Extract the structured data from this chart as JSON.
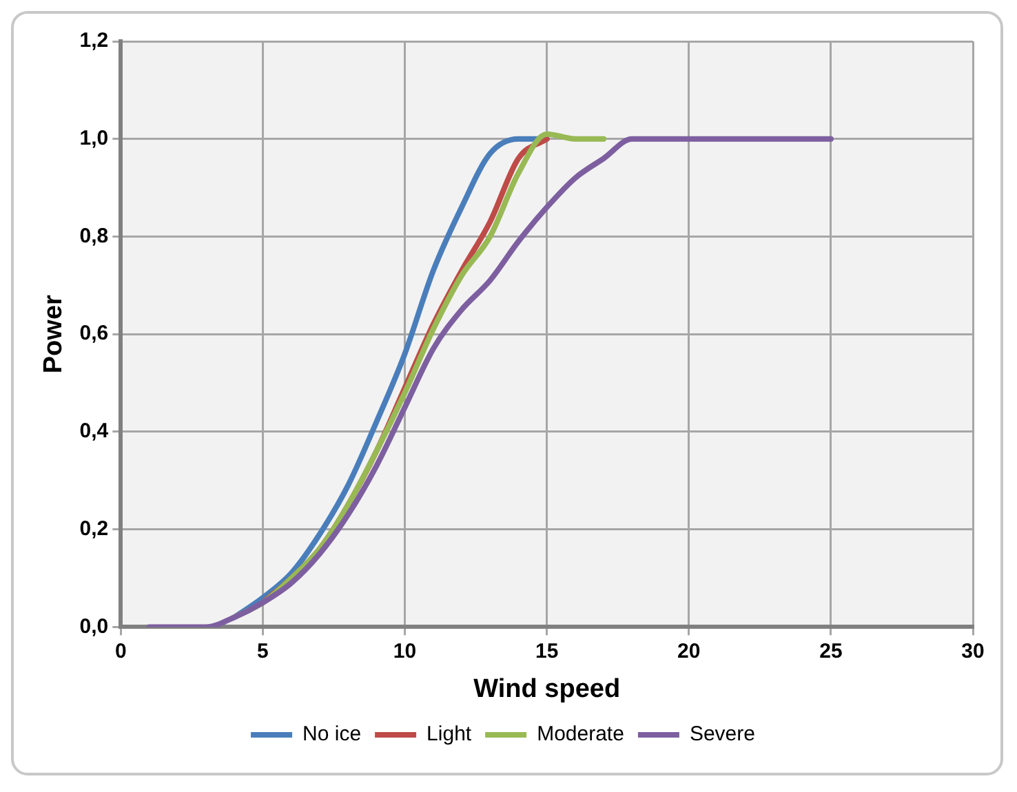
{
  "chart_data": {
    "type": "line",
    "xlabel": "Wind speed",
    "ylabel": "Power",
    "x": [
      1,
      2,
      3,
      4,
      5,
      6,
      7,
      8,
      9,
      10,
      11,
      12,
      13,
      14,
      15,
      16,
      17,
      18,
      19,
      20,
      21,
      22,
      23,
      24,
      25
    ],
    "series": [
      {
        "name": "No ice",
        "color": "#4a7ebb",
        "values": [
          null,
          null,
          null,
          0.02,
          0.06,
          0.11,
          0.19,
          0.29,
          0.42,
          0.56,
          0.73,
          0.86,
          0.97,
          1,
          1,
          null,
          null,
          null,
          null,
          null,
          null,
          null,
          null,
          null,
          null
        ]
      },
      {
        "name": "Light",
        "color": "#be4b48",
        "values": [
          null,
          null,
          null,
          null,
          0.05,
          0.1,
          0.16,
          0.25,
          0.36,
          0.49,
          0.62,
          0.73,
          0.83,
          0.96,
          1,
          null,
          null,
          null,
          null,
          null,
          null,
          null,
          null,
          null,
          null
        ]
      },
      {
        "name": "Moderate",
        "color": "#98b954",
        "values": [
          null,
          null,
          null,
          0.02,
          0.05,
          0.1,
          0.16,
          0.25,
          0.36,
          0.48,
          0.61,
          0.72,
          0.8,
          0.93,
          1.01,
          1,
          1,
          null,
          null,
          null,
          null,
          null,
          null,
          null,
          null
        ]
      },
      {
        "name": "Severe",
        "color": "#7d5fa0",
        "values": [
          0,
          0,
          0,
          0.02,
          0.05,
          0.09,
          0.15,
          0.23,
          0.33,
          0.45,
          0.57,
          0.65,
          0.71,
          0.79,
          0.86,
          0.92,
          0.96,
          1,
          1,
          1,
          1,
          1,
          1,
          1,
          1
        ]
      }
    ],
    "xlim": [
      0,
      30
    ],
    "xticks": [
      0,
      5,
      10,
      15,
      20,
      25,
      30
    ],
    "ylim": [
      0,
      1.2
    ],
    "yticks": [
      {
        "value": 0,
        "label": "0,0"
      },
      {
        "value": 0.2,
        "label": "0,2"
      },
      {
        "value": 0.4,
        "label": "0,4"
      },
      {
        "value": 0.6,
        "label": "0,6"
      },
      {
        "value": 0.8,
        "label": "0,8"
      },
      {
        "value": 1,
        "label": "1,0"
      },
      {
        "value": 1.2,
        "label": "1,2"
      }
    ],
    "grid": true,
    "legend": "bottom",
    "marker": "none",
    "line_style": "solid"
  }
}
